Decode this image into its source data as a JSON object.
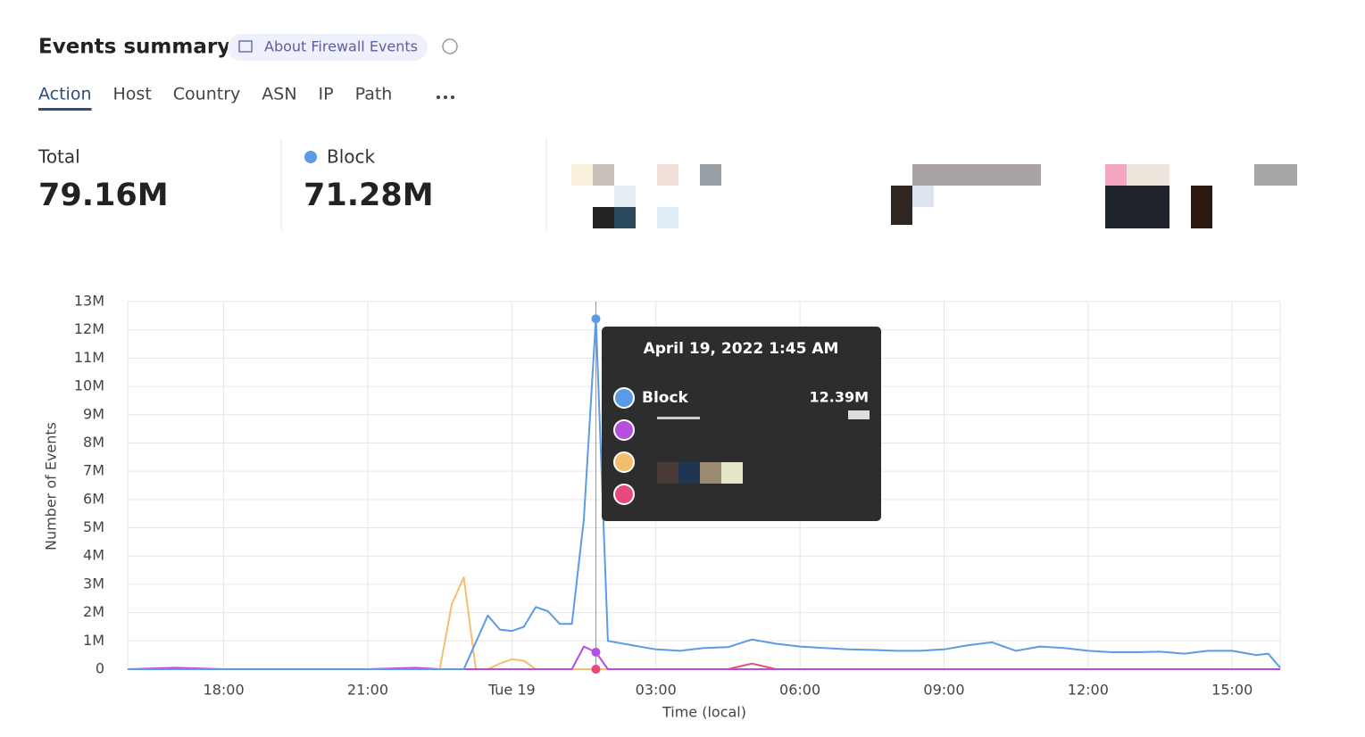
{
  "header": {
    "title": "Events summary",
    "badge": "About Firewall Events"
  },
  "tabs": [
    "Action",
    "Host",
    "Country",
    "ASN",
    "IP",
    "Path"
  ],
  "stats": [
    {
      "label": "Total",
      "value": "79.16M"
    },
    {
      "label": "Block",
      "value": "71.28M"
    }
  ],
  "chart_data": {
    "type": "line",
    "y_label": "Number of Events",
    "x_label": "Time (local)",
    "x": [
      "2022-04-18T16:00",
      "2022-04-18T17:00",
      "2022-04-18T18:00",
      "2022-04-18T19:00",
      "2022-04-18T20:00",
      "2022-04-18T21:00",
      "2022-04-18T22:00",
      "2022-04-18T22:30",
      "2022-04-18T22:45",
      "2022-04-18T23:00",
      "2022-04-18T23:15",
      "2022-04-18T23:30",
      "2022-04-18T23:45",
      "2022-04-19T00:00",
      "2022-04-19T00:15",
      "2022-04-19T00:30",
      "2022-04-19T00:45",
      "2022-04-19T01:00",
      "2022-04-19T01:15",
      "2022-04-19T01:30",
      "2022-04-19T01:45",
      "2022-04-19T02:00",
      "2022-04-19T02:30",
      "2022-04-19T03:00",
      "2022-04-19T03:30",
      "2022-04-19T04:00",
      "2022-04-19T04:30",
      "2022-04-19T05:00",
      "2022-04-19T05:30",
      "2022-04-19T06:00",
      "2022-04-19T06:30",
      "2022-04-19T07:00",
      "2022-04-19T07:30",
      "2022-04-19T08:00",
      "2022-04-19T08:30",
      "2022-04-19T09:00",
      "2022-04-19T09:30",
      "2022-04-19T10:00",
      "2022-04-19T10:30",
      "2022-04-19T11:00",
      "2022-04-19T11:30",
      "2022-04-19T12:00",
      "2022-04-19T12:30",
      "2022-04-19T13:00",
      "2022-04-19T13:30",
      "2022-04-19T14:00",
      "2022-04-19T14:30",
      "2022-04-19T15:00",
      "2022-04-19T15:30",
      "2022-04-19T15:45",
      "2022-04-19T16:00"
    ],
    "series": [
      {
        "name": "Block",
        "color": "#5b9be6",
        "values": [
          0,
          0,
          0,
          0,
          0,
          0,
          0,
          0,
          0,
          0,
          950000,
          1900000,
          1400000,
          1350000,
          1500000,
          2200000,
          2050000,
          1600000,
          1600000,
          5300000,
          12390000,
          1000000,
          850000,
          700000,
          650000,
          750000,
          780000,
          1050000,
          900000,
          800000,
          750000,
          700000,
          680000,
          650000,
          650000,
          700000,
          850000,
          950000,
          650000,
          800000,
          750000,
          650000,
          600000,
          600000,
          620000,
          550000,
          650000,
          650000,
          500000,
          550000,
          50000
        ]
      },
      {
        "color": "#b44fe0",
        "values": [
          0,
          50000,
          0,
          0,
          0,
          0,
          50000,
          0,
          0,
          0,
          0,
          0,
          0,
          0,
          0,
          0,
          0,
          0,
          0,
          800000,
          600000,
          0,
          0,
          0,
          0,
          0,
          0,
          0,
          0,
          0,
          0,
          0,
          0,
          0,
          0,
          0,
          0,
          0,
          0,
          0,
          0,
          0,
          0,
          0,
          0,
          0,
          0,
          0,
          0,
          0,
          0
        ]
      },
      {
        "color": "#f5bd6e",
        "values": [
          0,
          0,
          0,
          0,
          0,
          0,
          0,
          0,
          2300000,
          3250000,
          0,
          0,
          200000,
          350000,
          300000,
          0,
          0,
          0,
          0,
          0,
          0,
          0,
          0,
          0,
          0,
          0,
          0,
          0,
          0,
          0,
          0,
          0,
          0,
          0,
          0,
          0,
          0,
          0,
          0,
          0,
          0,
          0,
          0,
          0,
          0,
          0,
          0,
          0,
          0,
          0,
          0
        ]
      },
      {
        "color": "#e8497d",
        "values": [
          0,
          0,
          0,
          0,
          0,
          0,
          0,
          0,
          0,
          0,
          0,
          0,
          0,
          0,
          0,
          0,
          0,
          0,
          0,
          0,
          0,
          0,
          0,
          0,
          0,
          0,
          0,
          200000,
          0,
          0,
          0,
          0,
          0,
          0,
          0,
          0,
          0,
          0,
          0,
          0,
          0,
          0,
          0,
          0,
          0,
          0,
          0,
          0,
          0,
          0,
          0
        ]
      }
    ],
    "xlim": [
      "2022-04-18T16:00",
      "2022-04-19T16:00"
    ],
    "xticks": [
      {
        "value": "2022-04-18T18:00",
        "label": "18:00"
      },
      {
        "value": "2022-04-18T21:00",
        "label": "21:00"
      },
      {
        "value": "2022-04-19T00:00",
        "label": "Tue 19"
      },
      {
        "value": "2022-04-19T03:00",
        "label": "03:00"
      },
      {
        "value": "2022-04-19T06:00",
        "label": "06:00"
      },
      {
        "value": "2022-04-19T09:00",
        "label": "09:00"
      },
      {
        "value": "2022-04-19T12:00",
        "label": "12:00"
      },
      {
        "value": "2022-04-19T15:00",
        "label": "15:00"
      }
    ],
    "ylim": [
      0,
      13000000
    ],
    "yticks": [
      0,
      {
        "value": 1000000,
        "label": "1M"
      },
      {
        "value": 2000000,
        "label": "2M"
      },
      {
        "value": 3000000,
        "label": "3M"
      },
      {
        "value": 4000000,
        "label": "4M"
      },
      {
        "value": 5000000,
        "label": "5M"
      },
      {
        "value": 6000000,
        "label": "6M"
      },
      {
        "value": 7000000,
        "label": "7M"
      },
      {
        "value": 8000000,
        "label": "8M"
      },
      {
        "value": 9000000,
        "label": "9M"
      },
      {
        "value": 10000000,
        "label": "10M"
      },
      {
        "value": 11000000,
        "label": "11M"
      },
      {
        "value": 12000000,
        "label": "12M"
      },
      {
        "value": 13000000,
        "label": "13M"
      }
    ],
    "grid": true,
    "tooltip": {
      "title": "April 19, 2022 1:45 AM",
      "value_label": "12.39M"
    }
  }
}
